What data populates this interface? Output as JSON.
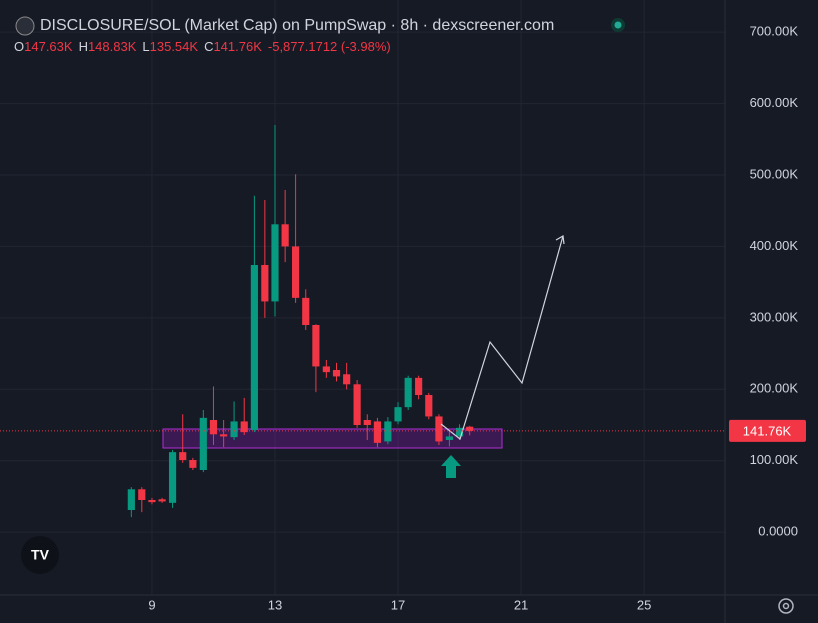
{
  "chart_data": {
    "type": "candlestick",
    "title": "DISCLOSURE/SOL (Market Cap) on PumpSwap · 8h · dexscreener.com",
    "ohlc_header": {
      "labels": [
        "O",
        "H",
        "L",
        "C"
      ],
      "values": [
        "147.63K",
        "148.83K",
        "135.54K",
        "141.76K"
      ],
      "change": "-5,877.1712 (-3.98%)"
    },
    "x": [
      8.33,
      8.67,
      9,
      9.33,
      9.67,
      10,
      10.33,
      10.67,
      11,
      11.33,
      11.67,
      12,
      12.33,
      12.67,
      13,
      13.33,
      13.67,
      14,
      14.33,
      14.67,
      15,
      15.33,
      15.67,
      16,
      16.33,
      16.67,
      17,
      17.33,
      17.67,
      18,
      18.33,
      18.67,
      19,
      19.33
    ],
    "open": [
      31000,
      60000,
      45000,
      46000,
      41000,
      112000,
      101000,
      87000,
      157000,
      137000,
      133000,
      155000,
      143000,
      374000,
      323000,
      431000,
      400000,
      328000,
      290000,
      232000,
      227000,
      221000,
      207000,
      157000,
      155000,
      127000,
      155000,
      175000,
      216000,
      192000,
      162000,
      129000,
      134000,
      147630
    ],
    "high": [
      63000,
      63000,
      48000,
      48000,
      115000,
      165000,
      104000,
      171000,
      204000,
      157000,
      183000,
      188000,
      471000,
      465000,
      570000,
      479000,
      501000,
      340000,
      291000,
      241000,
      237000,
      237000,
      213000,
      165000,
      160000,
      161000,
      182000,
      219000,
      219000,
      195000,
      165000,
      143000,
      151000,
      148830
    ],
    "low": [
      21000,
      28000,
      39000,
      41000,
      34000,
      97000,
      87000,
      84000,
      122000,
      119000,
      129000,
      136000,
      140000,
      300000,
      302000,
      378000,
      321000,
      283000,
      196000,
      216000,
      211000,
      200000,
      146000,
      129000,
      119000,
      123000,
      151000,
      171000,
      186000,
      158000,
      122000,
      120000,
      129000,
      135540
    ],
    "close": [
      60000,
      45000,
      42000,
      43000,
      112000,
      101000,
      90000,
      160000,
      137000,
      134000,
      155000,
      140000,
      374000,
      323000,
      431000,
      400000,
      328000,
      290000,
      232000,
      224000,
      218000,
      207000,
      150000,
      150000,
      125000,
      155000,
      175000,
      216000,
      192000,
      162000,
      127000,
      134000,
      146000,
      141760
    ],
    "up_color": "#089981",
    "down_color": "#f23645",
    "xlim": [
      4.06,
      27.63
    ],
    "xticks": [
      9,
      13,
      17,
      21,
      25
    ],
    "ylim": [
      -88000,
      745000
    ],
    "yticks": [
      {
        "value": 0,
        "label": "0.0000"
      },
      {
        "value": 100000,
        "label": "100.00K"
      },
      {
        "value": 200000,
        "label": "200.00K"
      },
      {
        "value": 300000,
        "label": "300.00K"
      },
      {
        "value": 400000,
        "label": "400.00K"
      },
      {
        "value": 500000,
        "label": "500.00K"
      },
      {
        "value": 600000,
        "label": "600.00K"
      },
      {
        "value": 700000,
        "label": "700.00K"
      }
    ],
    "last_price": {
      "value": 141760,
      "label": "141.76K"
    },
    "grid": true
  }
}
